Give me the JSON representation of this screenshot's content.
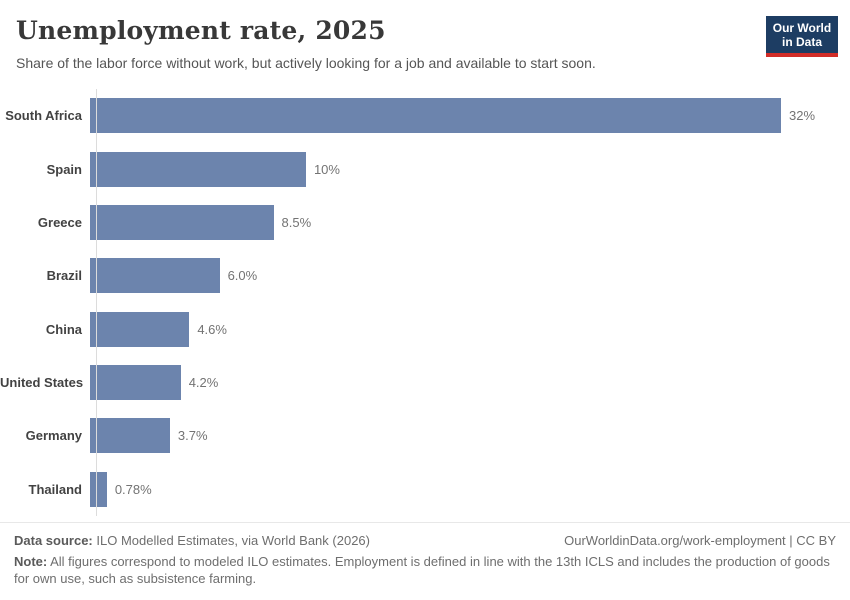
{
  "header": {
    "title": "Unemployment rate, 2025",
    "subtitle": "Share of the labor force without work, but actively looking for a job and available to start soon.",
    "logo": {
      "line1": "Our World",
      "line2": "in Data"
    }
  },
  "chart_data": {
    "type": "bar",
    "orientation": "horizontal",
    "title": "Unemployment rate, 2025",
    "unit": "%",
    "categories": [
      "South Africa",
      "Spain",
      "Greece",
      "Brazil",
      "China",
      "United States",
      "Germany",
      "Thailand"
    ],
    "values": [
      32,
      10,
      8.5,
      6.0,
      4.6,
      4.2,
      3.7,
      0.78
    ],
    "value_labels": [
      "32%",
      "10%",
      "8.5%",
      "6.0%",
      "4.6%",
      "4.2%",
      "3.7%",
      "0.78%"
    ],
    "xlim": [
      0,
      32
    ],
    "grid": false,
    "legend": "none",
    "bar_color": "#6c84ad"
  },
  "footer": {
    "data_source_label": "Data source:",
    "data_source": "ILO Modelled Estimates, via World Bank (2026)",
    "link": "OurWorldinData.org/work-employment | CC BY",
    "note_label": "Note:",
    "note": "All figures correspond to modeled ILO estimates. Employment is defined in line with the 13th ICLS and includes the production of goods for own use, such as subsistence farming."
  },
  "colors": {
    "bar": "#6c84ad",
    "axis_line": "#dcdcdc",
    "logo_bg": "#1d3d63",
    "logo_accent": "#d22d28"
  }
}
